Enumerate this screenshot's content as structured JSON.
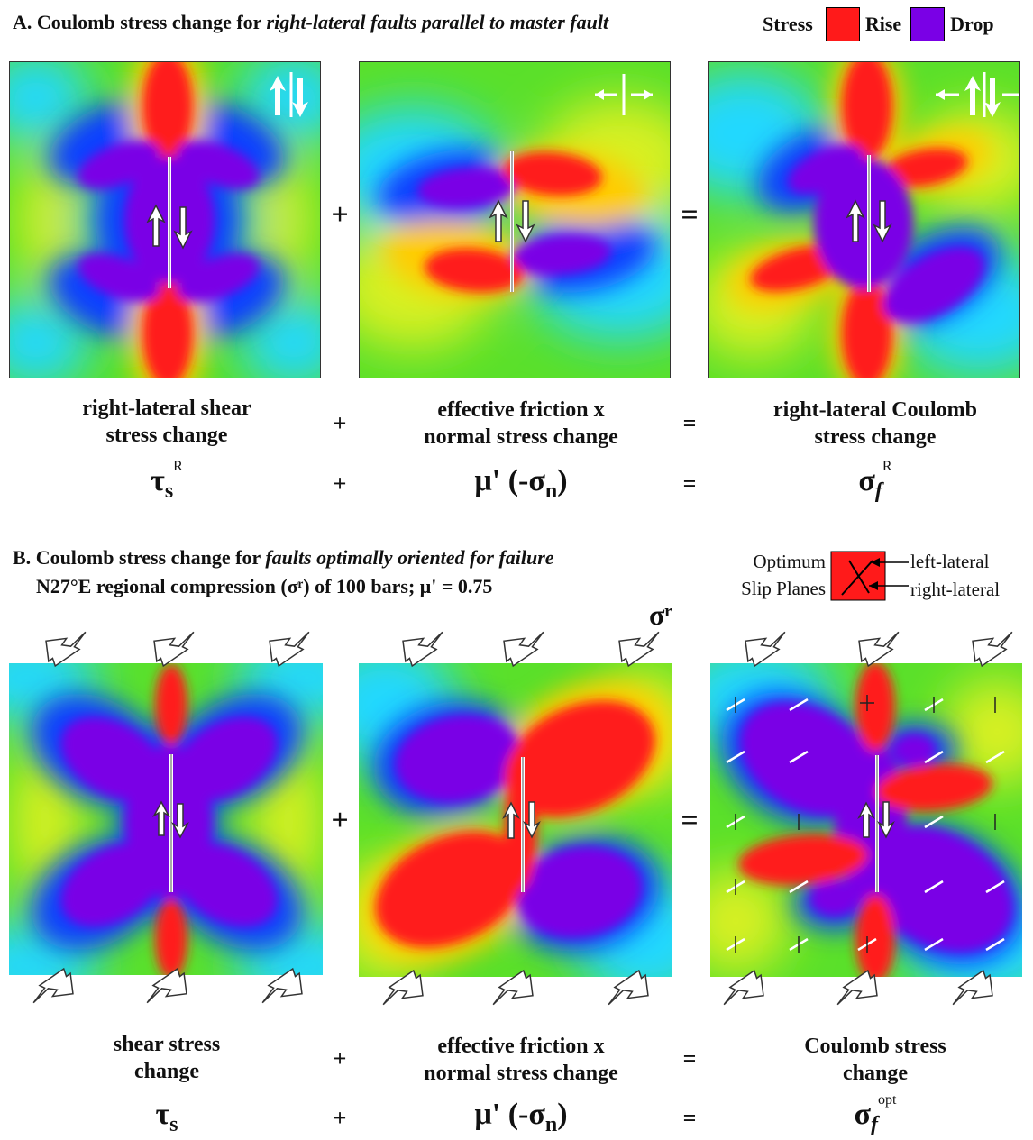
{
  "sectionA": {
    "label": "A.",
    "title_prefix": "Coulomb stress change for",
    "title_italic": "right-lateral faults parallel to master fault"
  },
  "legend": {
    "title": "Stress",
    "rise_label": "Rise",
    "drop_label": "Drop",
    "rise_color": "#ff1a1a",
    "drop_color": "#7a00e6"
  },
  "rowA": {
    "captions": [
      [
        "right-lateral shear",
        "stress change"
      ],
      [
        "effective friction  x",
        "normal stress change"
      ],
      [
        "right-lateral Coulomb",
        "stress change"
      ]
    ],
    "operators": [
      "+",
      "="
    ],
    "symbols": [
      {
        "base": "τ",
        "sub": "s",
        "sup": "R"
      },
      {
        "base": "μ' (-σ",
        "sub": "n",
        "tail": ")"
      },
      {
        "base": "σ",
        "sub": "f",
        "sup": "R"
      }
    ]
  },
  "sectionB": {
    "label": "B.",
    "title_prefix": "Coulomb stress change for",
    "title_italic": "faults optimally oriented for failure",
    "subtitle": "N27°E regional compression (σʳ) of 100 bars; μ' = 0.75",
    "sigma_r_label": "σʳ"
  },
  "optimum": {
    "line1": "Optimum",
    "line2": "Slip Planes",
    "left_label": "left-lateral",
    "right_label": "right-lateral"
  },
  "rowB": {
    "captions": [
      [
        "shear stress",
        "change"
      ],
      [
        "effective friction  x",
        "normal stress change"
      ],
      [
        "Coulomb stress",
        "change"
      ]
    ],
    "operators": [
      "+",
      "="
    ],
    "symbols": [
      {
        "base": "τ",
        "sub": "s"
      },
      {
        "base": "μ' (-σ",
        "sub": "n",
        "tail": ")"
      },
      {
        "base": "σ",
        "sub": "f",
        "sup": "opt"
      }
    ]
  }
}
